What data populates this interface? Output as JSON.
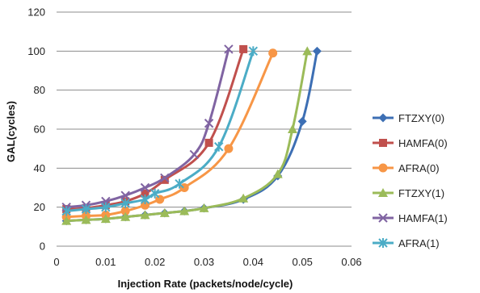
{
  "chart_data": {
    "type": "line",
    "xlabel": "Injection Rate (packets/node/cycle)",
    "ylabel": "GAL(cycles)",
    "xlim": [
      0,
      0.06
    ],
    "ylim": [
      0,
      120
    ],
    "xticks": [
      "0",
      "0.01",
      "0.02",
      "0.03",
      "0.04",
      "0.05",
      "0.06"
    ],
    "yticks": [
      "0",
      "20",
      "40",
      "60",
      "80",
      "100",
      "120"
    ],
    "grid": "horizontal",
    "legend_position": "right",
    "series": [
      {
        "name": "FTZXY(0)",
        "color": "#3d6fb4",
        "marker": "diamond",
        "points": [
          [
            0.002,
            13
          ],
          [
            0.006,
            13.5
          ],
          [
            0.01,
            14
          ],
          [
            0.014,
            15
          ],
          [
            0.018,
            16
          ],
          [
            0.022,
            17
          ],
          [
            0.026,
            18
          ],
          [
            0.03,
            19.5
          ],
          [
            0.038,
            24
          ],
          [
            0.045,
            36
          ],
          [
            0.05,
            64
          ],
          [
            0.053,
            100
          ]
        ]
      },
      {
        "name": "HAMFA(0)",
        "color": "#c0504d",
        "marker": "square",
        "points": [
          [
            0.002,
            19
          ],
          [
            0.006,
            19.5
          ],
          [
            0.01,
            21
          ],
          [
            0.014,
            23
          ],
          [
            0.018,
            27
          ],
          [
            0.022,
            34
          ],
          [
            0.031,
            53
          ],
          [
            0.038,
            101
          ]
        ]
      },
      {
        "name": "AFRA(0)",
        "color": "#f79646",
        "marker": "circle",
        "points": [
          [
            0.002,
            15
          ],
          [
            0.006,
            15.5
          ],
          [
            0.01,
            16
          ],
          [
            0.014,
            18
          ],
          [
            0.018,
            21
          ],
          [
            0.021,
            24
          ],
          [
            0.026,
            30
          ],
          [
            0.035,
            50
          ],
          [
            0.044,
            99
          ]
        ]
      },
      {
        "name": "FTZXY(1)",
        "color": "#9bbb59",
        "marker": "triangle",
        "points": [
          [
            0.002,
            13
          ],
          [
            0.006,
            13.5
          ],
          [
            0.01,
            14
          ],
          [
            0.014,
            15
          ],
          [
            0.018,
            16
          ],
          [
            0.022,
            17
          ],
          [
            0.026,
            18
          ],
          [
            0.03,
            19.5
          ],
          [
            0.038,
            24.5
          ],
          [
            0.045,
            37
          ],
          [
            0.048,
            60
          ],
          [
            0.051,
            100
          ]
        ]
      },
      {
        "name": "HAMFA(1)",
        "color": "#8064a2",
        "marker": "x",
        "points": [
          [
            0.002,
            20
          ],
          [
            0.006,
            21
          ],
          [
            0.01,
            23
          ],
          [
            0.014,
            26
          ],
          [
            0.018,
            30
          ],
          [
            0.022,
            35
          ],
          [
            0.028,
            47
          ],
          [
            0.031,
            63
          ],
          [
            0.035,
            101
          ]
        ]
      },
      {
        "name": "AFRA(1)",
        "color": "#4bacc6",
        "marker": "star",
        "points": [
          [
            0.002,
            18
          ],
          [
            0.006,
            19
          ],
          [
            0.01,
            20
          ],
          [
            0.014,
            22
          ],
          [
            0.018,
            24
          ],
          [
            0.02,
            27
          ],
          [
            0.025,
            32
          ],
          [
            0.033,
            51
          ],
          [
            0.04,
            100
          ]
        ]
      }
    ]
  }
}
